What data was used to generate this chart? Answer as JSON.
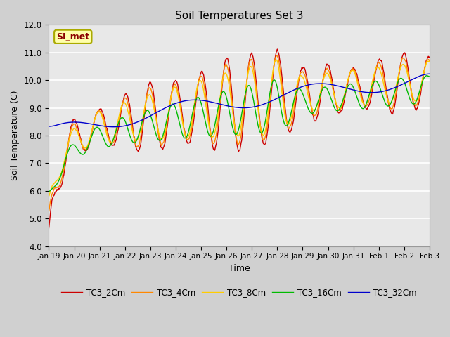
{
  "title": "Soil Temperatures Set 3",
  "xlabel": "Time",
  "ylabel": "Soil Temperature (C)",
  "ylim": [
    4.0,
    12.0
  ],
  "yticks": [
    4.0,
    5.0,
    6.0,
    7.0,
    8.0,
    9.0,
    10.0,
    11.0,
    12.0
  ],
  "xtick_labels": [
    "Jan 19",
    "Jan 20",
    "Jan 21",
    "Jan 22",
    "Jan 23",
    "Jan 24",
    "Jan 25",
    "Jan 26",
    "Jan 27",
    "Jan 28",
    "Jan 29",
    "Jan 30",
    "Jan 31",
    "Feb 1",
    "Feb 2",
    "Feb 3"
  ],
  "series_names": [
    "TC3_2Cm",
    "TC3_4Cm",
    "TC3_8Cm",
    "TC3_16Cm",
    "TC3_32Cm"
  ],
  "series_colors": [
    "#cc0000",
    "#ff8800",
    "#ffcc00",
    "#00bb00",
    "#0000cc"
  ],
  "annotation_text": "SI_met",
  "fig_facecolor": "#d0d0d0",
  "ax_facecolor": "#e8e8e8",
  "grid_color": "#ffffff",
  "n_points": 2160
}
